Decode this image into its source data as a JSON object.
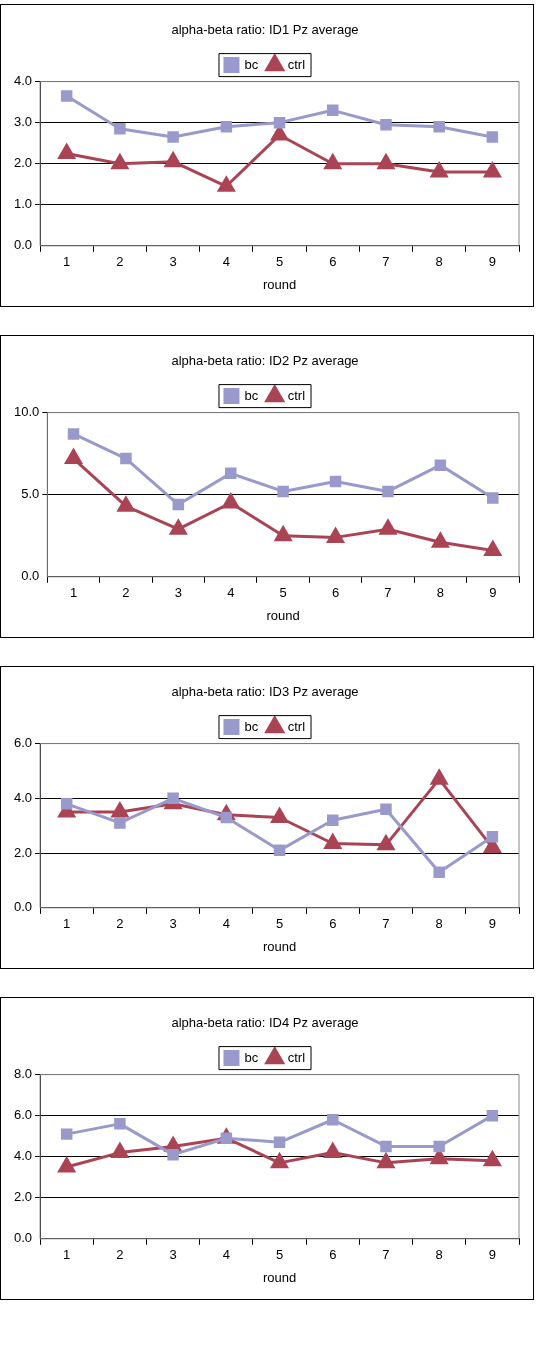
{
  "chart_data": [
    {
      "type": "line",
      "title": "alpha-beta ratio: ID1 Pz average",
      "xlabel": "round",
      "categories": [
        "1",
        "2",
        "3",
        "4",
        "5",
        "6",
        "7",
        "8",
        "9"
      ],
      "ylim": [
        0,
        4
      ],
      "yticks": [
        {
          "value": 0,
          "label": "0.0"
        },
        {
          "value": 1,
          "label": "1.0"
        },
        {
          "value": 2,
          "label": "2.0"
        },
        {
          "value": 3,
          "label": "3.0"
        },
        {
          "value": 4,
          "label": "4.0"
        }
      ],
      "grid": "y",
      "legend": "top",
      "series": [
        {
          "name": "bc",
          "color": "#9999cc",
          "marker": "square",
          "values": [
            3.65,
            2.85,
            2.65,
            2.9,
            3.0,
            3.3,
            2.95,
            2.9,
            2.65
          ]
        },
        {
          "name": "ctrl",
          "color": "#aa4455",
          "marker": "triangle",
          "values": [
            2.25,
            2.0,
            2.05,
            1.45,
            2.7,
            2.0,
            2.0,
            1.8,
            1.8
          ]
        }
      ]
    },
    {
      "type": "line",
      "title": "alpha-beta ratio: ID2 Pz average",
      "xlabel": "round",
      "categories": [
        "1",
        "2",
        "3",
        "4",
        "5",
        "6",
        "7",
        "8",
        "9"
      ],
      "ylim": [
        0,
        10
      ],
      "yticks": [
        {
          "value": 0,
          "label": "0.0"
        },
        {
          "value": 5,
          "label": "5.0"
        },
        {
          "value": 10,
          "label": "10.0"
        }
      ],
      "grid": "y",
      "legend": "top",
      "series": [
        {
          "name": "bc",
          "color": "#9999cc",
          "marker": "square",
          "values": [
            8.7,
            7.2,
            4.4,
            6.3,
            5.2,
            5.8,
            5.2,
            6.8,
            4.8
          ]
        },
        {
          "name": "ctrl",
          "color": "#aa4455",
          "marker": "triangle",
          "values": [
            7.2,
            4.3,
            2.9,
            4.5,
            2.5,
            2.4,
            2.9,
            2.1,
            1.6
          ]
        }
      ]
    },
    {
      "type": "line",
      "title": "alpha-beta ratio: ID3 Pz average",
      "xlabel": "round",
      "categories": [
        "1",
        "2",
        "3",
        "4",
        "5",
        "6",
        "7",
        "8",
        "9"
      ],
      "ylim": [
        0,
        6
      ],
      "yticks": [
        {
          "value": 0,
          "label": "0.0"
        },
        {
          "value": 2,
          "label": "2.0"
        },
        {
          "value": 4,
          "label": "4.0"
        },
        {
          "value": 6,
          "label": "6.0"
        }
      ],
      "grid": "y",
      "legend": "top",
      "series": [
        {
          "name": "bc",
          "color": "#9999cc",
          "marker": "square",
          "values": [
            3.8,
            3.1,
            4.0,
            3.3,
            2.1,
            3.2,
            3.6,
            1.3,
            2.6
          ]
        },
        {
          "name": "ctrl",
          "color": "#aa4455",
          "marker": "triangle",
          "values": [
            3.5,
            3.5,
            3.8,
            3.4,
            3.3,
            2.35,
            2.3,
            4.7,
            2.2
          ]
        }
      ]
    },
    {
      "type": "line",
      "title": "alpha-beta ratio: ID4 Pz average",
      "xlabel": "round",
      "categories": [
        "1",
        "2",
        "3",
        "4",
        "5",
        "6",
        "7",
        "8",
        "9"
      ],
      "ylim": [
        0,
        8
      ],
      "yticks": [
        {
          "value": 0,
          "label": "0.0"
        },
        {
          "value": 2,
          "label": "2.0"
        },
        {
          "value": 4,
          "label": "4.0"
        },
        {
          "value": 6,
          "label": "6.0"
        },
        {
          "value": 8,
          "label": "8.0"
        }
      ],
      "grid": "y",
      "legend": "top",
      "series": [
        {
          "name": "bc",
          "color": "#9999cc",
          "marker": "square",
          "values": [
            5.1,
            5.6,
            4.1,
            4.9,
            4.7,
            5.8,
            4.5,
            4.5,
            6.0
          ]
        },
        {
          "name": "ctrl",
          "color": "#aa4455",
          "marker": "triangle",
          "values": [
            3.5,
            4.2,
            4.5,
            4.9,
            3.7,
            4.2,
            3.7,
            3.9,
            3.8
          ]
        }
      ]
    }
  ]
}
